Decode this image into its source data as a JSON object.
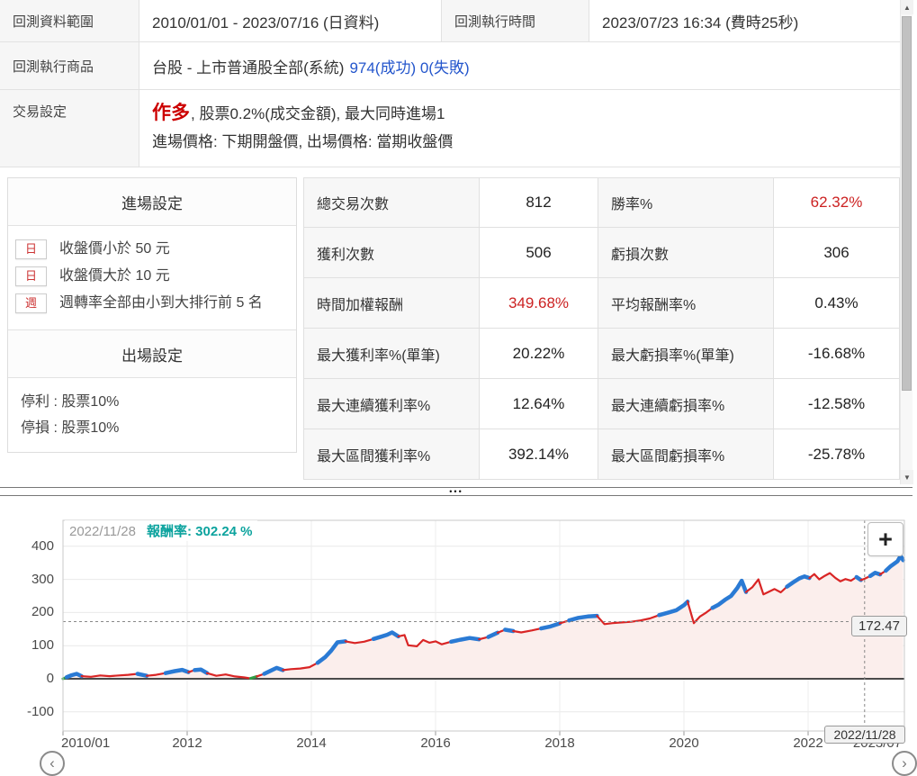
{
  "colors": {
    "accent_red": "#cc2222",
    "link_blue": "#2456cc",
    "tooltip_teal": "#0ca39e"
  },
  "top_info": {
    "r1c1_label": "回測資料範圍",
    "r1c1_value": "2010/01/01 - 2023/07/16 (日資料)",
    "r1c2_label": "回測執行時間",
    "r1c2_value": "2023/07/23 16:34 (費時25秒)",
    "r2_label": "回測執行商品",
    "r2_value_main": "台股 - 上市普通股全部(系統)",
    "r2_value_link": "974(成功) 0(失敗)",
    "r3_label": "交易設定",
    "r3_direction": "作多",
    "r3_rest": ", 股票0.2%(成交金額), 最大同時進場1",
    "r3_line2": "進場價格: 下期開盤價, 出場價格: 當期收盤價"
  },
  "entry_exit": {
    "entry_header": "進場設定",
    "conditions": [
      {
        "badge": "日",
        "text": "收盤價小於 50 元"
      },
      {
        "badge": "日",
        "text": "收盤價大於 10 元"
      },
      {
        "badge": "週",
        "text": "週轉率全部由小到大排行前 5 名"
      }
    ],
    "exit_header": "出場設定",
    "exit_lines": [
      "停利 : 股票10%",
      "停損 : 股票10%"
    ]
  },
  "stats": {
    "rows": [
      {
        "l1": "總交易次數",
        "v1": "812",
        "l2": "勝率%",
        "v2": "62.32%"
      },
      {
        "l1": "獲利次數",
        "v1": "506",
        "l2": "虧損次數",
        "v2": "306"
      },
      {
        "l1": "時間加權報酬",
        "v1": "349.68%",
        "l2": "平均報酬率%",
        "v2": "0.43%"
      },
      {
        "l1": "最大獲利率%(單筆)",
        "v1": "20.22%",
        "l2": "最大虧損率%(單筆)",
        "v2": "-16.68%"
      },
      {
        "l1": "最大連續獲利率%",
        "v1": "12.64%",
        "l2": "最大連續虧損率%",
        "v2": "-12.58%"
      },
      {
        "l1": "最大區間獲利率%",
        "v1": "392.14%",
        "l2": "最大區間虧損率%",
        "v2": "-25.78%"
      }
    ]
  },
  "splitter": {
    "dots": "•••"
  },
  "chart_data": {
    "type": "area",
    "title": "",
    "tooltip": {
      "date": "2022/11/28",
      "label": "報酬率:",
      "value": "302.24 %"
    },
    "crosshair": {
      "date_label": "2022/11/28",
      "value_label": "172.47",
      "x_year": 2022.91,
      "y_value": 172.47
    },
    "zoom_button": "+",
    "grid": true,
    "legend": "none",
    "ylim": [
      -160,
      480
    ],
    "y_ticks": [
      -100,
      0,
      100,
      200,
      300,
      400
    ],
    "x_ticks": [
      {
        "label": "2010/01",
        "year": 2010.0
      },
      {
        "label": "2012",
        "year": 2012
      },
      {
        "label": "2014",
        "year": 2014
      },
      {
        "label": "2016",
        "year": 2016
      },
      {
        "label": "2018",
        "year": 2018
      },
      {
        "label": "2020",
        "year": 2020
      },
      {
        "label": "2022",
        "year": 2022
      },
      {
        "label": "2023/07",
        "year": 2023.54
      }
    ],
    "colors": {
      "line": "#d92525",
      "highlight": "#2a7ad4",
      "start": "#2f9e44",
      "fill": "#fbeeec"
    },
    "series": [
      {
        "name": "報酬率",
        "baseline": 0,
        "points": [
          [
            2010.0,
            0,
            "g"
          ],
          [
            2010.06,
            5,
            "b"
          ],
          [
            2010.14,
            11,
            "b"
          ],
          [
            2010.22,
            15,
            "b"
          ],
          [
            2010.3,
            8,
            "r"
          ],
          [
            2010.45,
            6,
            "r"
          ],
          [
            2010.6,
            10,
            "r"
          ],
          [
            2010.75,
            8,
            "r"
          ],
          [
            2010.9,
            10,
            "r"
          ],
          [
            2011.05,
            12,
            "r"
          ],
          [
            2011.2,
            15,
            "b"
          ],
          [
            2011.35,
            9,
            "r"
          ],
          [
            2011.5,
            12,
            "r"
          ],
          [
            2011.65,
            17,
            "b"
          ],
          [
            2011.8,
            23,
            "b"
          ],
          [
            2011.92,
            27,
            "b"
          ],
          [
            2012.02,
            20,
            "r"
          ],
          [
            2012.12,
            26,
            "b"
          ],
          [
            2012.22,
            28,
            "b"
          ],
          [
            2012.32,
            17,
            "r"
          ],
          [
            2012.47,
            9,
            "r"
          ],
          [
            2012.62,
            13,
            "r"
          ],
          [
            2012.77,
            7,
            "r"
          ],
          [
            2012.92,
            4,
            "r"
          ],
          [
            2013.02,
            1,
            "g"
          ],
          [
            2013.12,
            7,
            "r"
          ],
          [
            2013.24,
            15,
            "b"
          ],
          [
            2013.34,
            24,
            "b"
          ],
          [
            2013.44,
            33,
            "b"
          ],
          [
            2013.54,
            26,
            "r"
          ],
          [
            2013.67,
            29,
            "r"
          ],
          [
            2013.82,
            31,
            "r"
          ],
          [
            2013.97,
            35,
            "r"
          ],
          [
            2014.1,
            48,
            "b"
          ],
          [
            2014.22,
            65,
            "b"
          ],
          [
            2014.32,
            85,
            "b"
          ],
          [
            2014.42,
            110,
            "b"
          ],
          [
            2014.55,
            113,
            "r"
          ],
          [
            2014.7,
            108,
            "r"
          ],
          [
            2014.85,
            112,
            "r"
          ],
          [
            2015.0,
            120,
            "b"
          ],
          [
            2015.12,
            127,
            "b"
          ],
          [
            2015.22,
            133,
            "b"
          ],
          [
            2015.3,
            140,
            "b"
          ],
          [
            2015.4,
            128,
            "r"
          ],
          [
            2015.5,
            132,
            "r"
          ],
          [
            2015.56,
            101,
            "r"
          ],
          [
            2015.7,
            98,
            "r"
          ],
          [
            2015.8,
            117,
            "r"
          ],
          [
            2015.9,
            109,
            "r"
          ],
          [
            2016.0,
            113,
            "r"
          ],
          [
            2016.1,
            104,
            "r"
          ],
          [
            2016.25,
            112,
            "b"
          ],
          [
            2016.4,
            118,
            "b"
          ],
          [
            2016.55,
            123,
            "b"
          ],
          [
            2016.7,
            119,
            "r"
          ],
          [
            2016.85,
            126,
            "b"
          ],
          [
            2017.0,
            139,
            "r"
          ],
          [
            2017.12,
            148,
            "b"
          ],
          [
            2017.25,
            144,
            "r"
          ],
          [
            2017.38,
            140,
            "r"
          ],
          [
            2017.55,
            146,
            "r"
          ],
          [
            2017.7,
            152,
            "b"
          ],
          [
            2017.85,
            158,
            "b"
          ],
          [
            2018.0,
            167,
            "r"
          ],
          [
            2018.15,
            176,
            "b"
          ],
          [
            2018.3,
            184,
            "b"
          ],
          [
            2018.45,
            188,
            "b"
          ],
          [
            2018.6,
            190,
            "r"
          ],
          [
            2018.72,
            165,
            "r"
          ],
          [
            2018.85,
            168,
            "r"
          ],
          [
            2019.0,
            170,
            "r"
          ],
          [
            2019.15,
            172,
            "r"
          ],
          [
            2019.3,
            176,
            "r"
          ],
          [
            2019.45,
            182,
            "r"
          ],
          [
            2019.6,
            192,
            "b"
          ],
          [
            2019.75,
            200,
            "b"
          ],
          [
            2019.88,
            207,
            "b"
          ],
          [
            2020.0,
            222,
            "b"
          ],
          [
            2020.06,
            233,
            "r"
          ],
          [
            2020.16,
            168,
            "r"
          ],
          [
            2020.26,
            188,
            "r"
          ],
          [
            2020.36,
            200,
            "r"
          ],
          [
            2020.46,
            214,
            "b"
          ],
          [
            2020.56,
            224,
            "b"
          ],
          [
            2020.66,
            238,
            "b"
          ],
          [
            2020.76,
            250,
            "b"
          ],
          [
            2020.86,
            274,
            "b"
          ],
          [
            2020.93,
            296,
            "b"
          ],
          [
            2021.0,
            262,
            "r"
          ],
          [
            2021.1,
            276,
            "r"
          ],
          [
            2021.2,
            300,
            "r"
          ],
          [
            2021.28,
            255,
            "r"
          ],
          [
            2021.36,
            262,
            "r"
          ],
          [
            2021.46,
            271,
            "r"
          ],
          [
            2021.56,
            261,
            "r"
          ],
          [
            2021.66,
            278,
            "b"
          ],
          [
            2021.76,
            291,
            "b"
          ],
          [
            2021.86,
            303,
            "b"
          ],
          [
            2021.94,
            309,
            "b"
          ],
          [
            2022.02,
            304,
            "r"
          ],
          [
            2022.1,
            316,
            "r"
          ],
          [
            2022.18,
            300,
            "r"
          ],
          [
            2022.27,
            311,
            "r"
          ],
          [
            2022.35,
            319,
            "r"
          ],
          [
            2022.44,
            304,
            "r"
          ],
          [
            2022.52,
            294,
            "r"
          ],
          [
            2022.6,
            301,
            "r"
          ],
          [
            2022.69,
            296,
            "r"
          ],
          [
            2022.78,
            307,
            "b"
          ],
          [
            2022.85,
            298,
            "r"
          ],
          [
            2022.91,
            302,
            "r"
          ],
          [
            2023.0,
            310,
            "b"
          ],
          [
            2023.08,
            320,
            "b"
          ],
          [
            2023.16,
            315,
            "r"
          ],
          [
            2023.25,
            326,
            "b"
          ],
          [
            2023.33,
            340,
            "b"
          ],
          [
            2023.44,
            355,
            "b"
          ],
          [
            2023.49,
            371,
            "b"
          ],
          [
            2023.53,
            358,
            "r"
          ]
        ]
      }
    ]
  }
}
